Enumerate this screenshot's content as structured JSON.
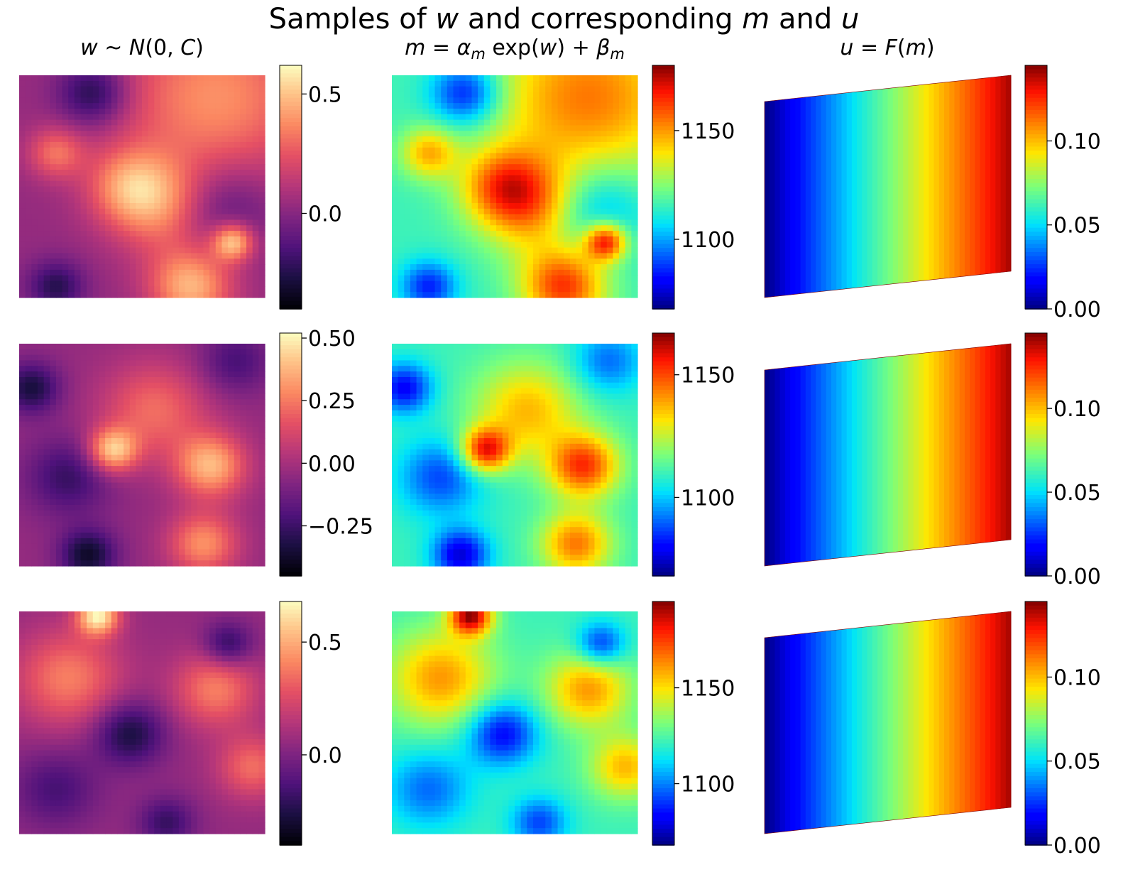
{
  "title": "Samples of w and corresponding m and u",
  "title_parts": {
    "pre": "Samples of ",
    "w": "w",
    "mid": " and corresponding ",
    "m": "m",
    "and": " and ",
    "u": "u"
  },
  "column_titles": {
    "w": {
      "a": "w",
      "b": " ~ ",
      "c": "N",
      "d": "(0, ",
      "e": "C",
      "f": ")"
    },
    "m": {
      "a": "m",
      "b": " = ",
      "c": "α",
      "d": "m",
      "e": " exp(",
      "f": "w",
      "g": ") + ",
      "h": "β",
      "i": "m"
    },
    "u": {
      "a": "u",
      "b": " = ",
      "c": "F",
      "d": "(",
      "e": "m",
      "f": ")"
    }
  },
  "chart_data": [
    {
      "type": "heatmap",
      "panel": "row1-w",
      "colormap": "magma",
      "title": "w ~ N(0, C)",
      "colorbar": {
        "range": [
          -0.4,
          0.62
        ],
        "ticks": [
          0.0,
          0.5
        ],
        "tick_labels": [
          "0.0",
          "0.5"
        ]
      },
      "peaks": [
        [
          0.62,
          0.06,
          0.87,
          0.75
        ],
        [
          0.55,
          0.12,
          0.7,
          0.95
        ],
        [
          0.45,
          0.28,
          0.8,
          0.1
        ],
        [
          0.4,
          0.12,
          0.45,
          0.5
        ],
        [
          0.4,
          0.15,
          0.6,
          0.6
        ],
        [
          -0.4,
          0.1,
          0.3,
          0.08
        ],
        [
          -0.35,
          0.08,
          0.15,
          0.95
        ],
        [
          -0.3,
          0.15,
          0.8,
          0.6
        ],
        [
          0.35,
          0.08,
          0.15,
          0.35
        ]
      ]
    },
    {
      "type": "heatmap",
      "panel": "row1-m",
      "colormap": "jet",
      "title": "m = α_m exp(w) + β_m",
      "colorbar": {
        "range": [
          1068,
          1180
        ],
        "ticks": [
          1100,
          1150
        ],
        "tick_labels": [
          "1100",
          "1150"
        ]
      },
      "peaks": [
        [
          0.62,
          0.06,
          0.87,
          0.75
        ],
        [
          0.55,
          0.12,
          0.7,
          0.95
        ],
        [
          0.45,
          0.28,
          0.8,
          0.1
        ],
        [
          0.4,
          0.12,
          0.45,
          0.5
        ],
        [
          0.4,
          0.15,
          0.6,
          0.6
        ],
        [
          -0.4,
          0.1,
          0.3,
          0.08
        ],
        [
          -0.35,
          0.08,
          0.15,
          0.95
        ],
        [
          -0.3,
          0.15,
          0.8,
          0.6
        ],
        [
          0.35,
          0.08,
          0.15,
          0.35
        ]
      ]
    },
    {
      "type": "heatmap",
      "panel": "row1-u",
      "colormap": "jet",
      "title": "u = F(m)",
      "colorbar": {
        "range": [
          0.0,
          0.145
        ],
        "ticks": [
          0.0,
          0.05,
          0.1
        ],
        "tick_labels": [
          "0.00",
          "0.05",
          "0.10"
        ]
      }
    },
    {
      "type": "heatmap",
      "panel": "row2-w",
      "colormap": "magma",
      "title": "w ~ N(0, C)",
      "colorbar": {
        "range": [
          -0.45,
          0.52
        ],
        "ticks": [
          -0.25,
          0.0,
          0.25,
          0.5
        ],
        "tick_labels": [
          "−0.25",
          "0.00",
          "0.25",
          "0.50"
        ]
      },
      "peaks": [
        [
          0.6,
          0.07,
          0.38,
          0.48
        ],
        [
          0.55,
          0.1,
          0.78,
          0.55
        ],
        [
          0.45,
          0.1,
          0.75,
          0.9
        ],
        [
          0.35,
          0.15,
          0.55,
          0.3
        ],
        [
          -0.45,
          0.08,
          0.28,
          0.95
        ],
        [
          -0.4,
          0.08,
          0.05,
          0.2
        ],
        [
          -0.3,
          0.12,
          0.2,
          0.6
        ],
        [
          -0.25,
          0.1,
          0.88,
          0.08
        ]
      ]
    },
    {
      "type": "heatmap",
      "panel": "row2-m",
      "colormap": "jet",
      "title": "m = α_m exp(w) + β_m",
      "colorbar": {
        "range": [
          1068,
          1167
        ],
        "ticks": [
          1100,
          1150
        ],
        "tick_labels": [
          "1100",
          "1150"
        ]
      },
      "peaks": [
        [
          0.6,
          0.07,
          0.38,
          0.48
        ],
        [
          0.55,
          0.1,
          0.78,
          0.55
        ],
        [
          0.45,
          0.1,
          0.75,
          0.9
        ],
        [
          0.35,
          0.15,
          0.55,
          0.3
        ],
        [
          -0.45,
          0.08,
          0.28,
          0.95
        ],
        [
          -0.4,
          0.08,
          0.05,
          0.2
        ],
        [
          -0.3,
          0.12,
          0.2,
          0.6
        ],
        [
          -0.25,
          0.1,
          0.88,
          0.08
        ]
      ]
    },
    {
      "type": "heatmap",
      "panel": "row2-u",
      "colormap": "jet",
      "title": "u = F(m)",
      "colorbar": {
        "range": [
          0.0,
          0.145
        ],
        "ticks": [
          0.0,
          0.05,
          0.1
        ],
        "tick_labels": [
          "0.00",
          "0.05",
          "0.10"
        ]
      }
    },
    {
      "type": "heatmap",
      "panel": "row3-w",
      "colormap": "magma",
      "title": "w ~ N(0, C)",
      "colorbar": {
        "range": [
          -0.4,
          0.68
        ],
        "ticks": [
          0.0,
          0.5
        ],
        "tick_labels": [
          "0.0",
          "0.5"
        ]
      },
      "peaks": [
        [
          0.7,
          0.06,
          0.32,
          0.02
        ],
        [
          0.4,
          0.12,
          0.8,
          0.35
        ],
        [
          0.35,
          0.1,
          0.95,
          0.7
        ],
        [
          0.4,
          0.15,
          0.2,
          0.3
        ],
        [
          -0.4,
          0.1,
          0.45,
          0.55
        ],
        [
          -0.35,
          0.07,
          0.85,
          0.15
        ],
        [
          -0.3,
          0.08,
          0.6,
          0.95
        ],
        [
          -0.25,
          0.12,
          0.15,
          0.8
        ]
      ]
    },
    {
      "type": "heatmap",
      "panel": "row3-m",
      "colormap": "jet",
      "title": "m = α_m exp(w) + β_m",
      "colorbar": {
        "range": [
          1068,
          1195
        ],
        "ticks": [
          1100,
          1150
        ],
        "tick_labels": [
          "1100",
          "1150"
        ]
      },
      "peaks": [
        [
          0.7,
          0.06,
          0.32,
          0.02
        ],
        [
          0.4,
          0.12,
          0.8,
          0.35
        ],
        [
          0.35,
          0.1,
          0.95,
          0.7
        ],
        [
          0.4,
          0.15,
          0.2,
          0.3
        ],
        [
          -0.4,
          0.1,
          0.45,
          0.55
        ],
        [
          -0.35,
          0.07,
          0.85,
          0.15
        ],
        [
          -0.3,
          0.08,
          0.6,
          0.95
        ],
        [
          -0.25,
          0.12,
          0.15,
          0.8
        ]
      ]
    },
    {
      "type": "heatmap",
      "panel": "row3-u",
      "colormap": "jet",
      "title": "u = F(m)",
      "colorbar": {
        "range": [
          0.0,
          0.145
        ],
        "ticks": [
          0.0,
          0.05,
          0.1
        ],
        "tick_labels": [
          "0.00",
          "0.05",
          "0.10"
        ]
      }
    }
  ]
}
